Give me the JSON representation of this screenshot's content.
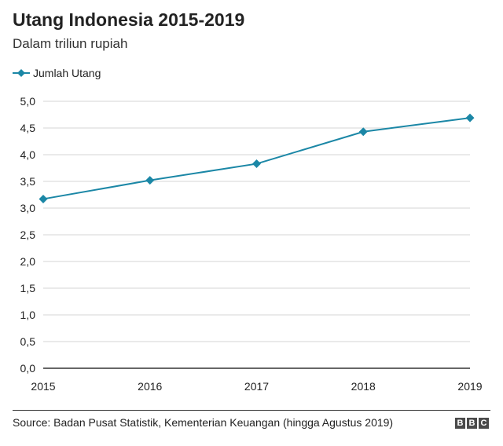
{
  "header": {
    "title": "Utang Indonesia 2015-2019",
    "subtitle": "Dalam triliun rupiah"
  },
  "colors": {
    "series": "#1b87a6",
    "marker": "#1b87a6",
    "grid": "#d6d6d6",
    "axis": "#333333",
    "text": "#222222"
  },
  "chart_data": {
    "type": "line",
    "title": "Utang Indonesia 2015-2019",
    "subtitle": "Dalam triliun rupiah",
    "x": [
      "2015",
      "2016",
      "2017",
      "2018",
      "2019"
    ],
    "series": [
      {
        "name": "Jumlah Utang",
        "values": [
          3.17,
          3.52,
          3.83,
          4.43,
          4.69
        ]
      }
    ],
    "yticks": [
      "0,0",
      "0,5",
      "1,0",
      "1,5",
      "2,0",
      "2,5",
      "3,0",
      "3,5",
      "4,0",
      "4,5",
      "5,0"
    ],
    "ylim": [
      0,
      5
    ],
    "grid": "horizontal",
    "legend": "top-left",
    "marker": "diamond"
  },
  "footer": {
    "source": "Source: Badan Pusat Statistik, Kementerian Keuangan (hingga Agustus 2019)",
    "logo_letters": [
      "B",
      "B",
      "C"
    ]
  }
}
